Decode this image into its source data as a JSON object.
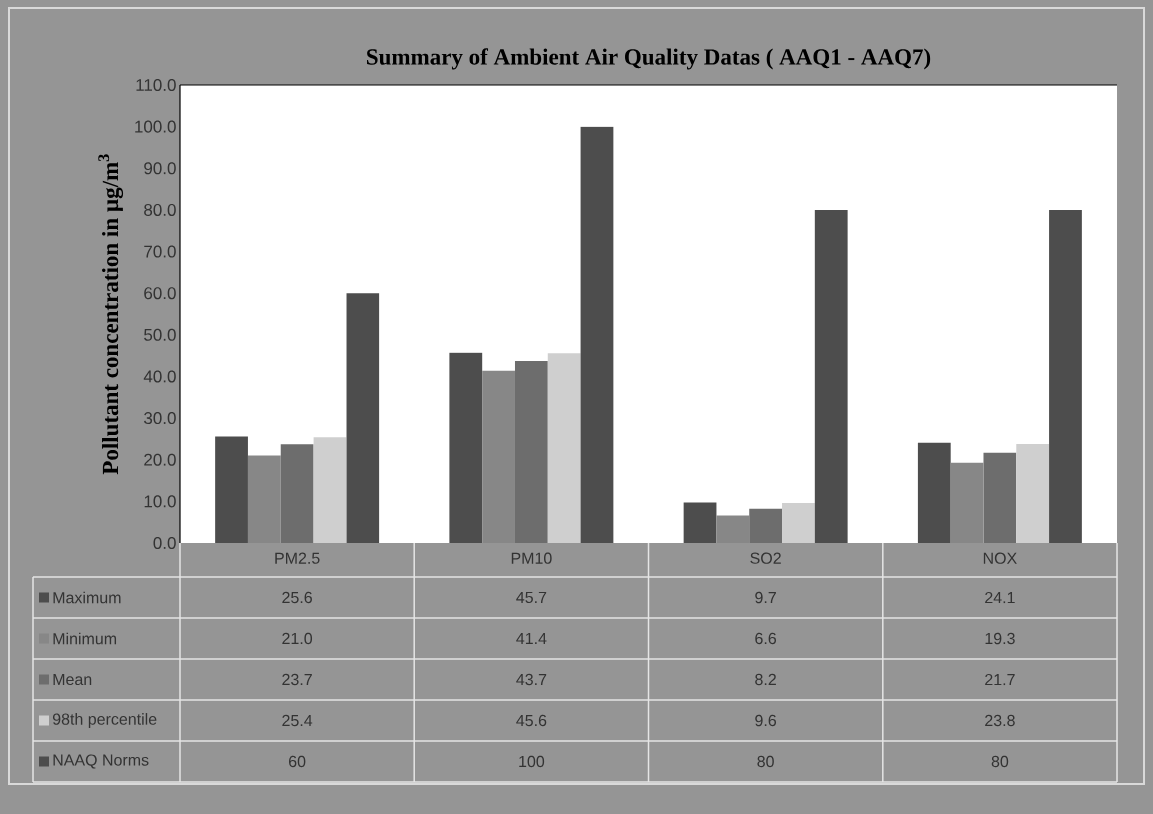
{
  "chart_data": {
    "type": "bar",
    "title": "Summary of Ambient Air Quality Datas ( AAQ1 - AAQ7)",
    "ylabel": "Pollutant  concentration  in  µg/m$^{3}$",
    "categories": [
      "PM2.5",
      "PM10",
      "SO2",
      "NOX"
    ],
    "series": [
      {
        "name": "Maximum",
        "color": "#4d4d4d",
        "values": [
          25.6,
          45.7,
          9.7,
          24.1
        ],
        "value_labels": [
          "25.6",
          "45.7",
          "9.7",
          "24.1"
        ]
      },
      {
        "name": "Minimum",
        "color": "#878787",
        "values": [
          21.0,
          41.4,
          6.6,
          19.3
        ],
        "value_labels": [
          "21.0",
          "41.4",
          "6.6",
          "19.3"
        ]
      },
      {
        "name": "Mean",
        "color": "#6d6d6d",
        "values": [
          23.7,
          43.7,
          8.2,
          21.7
        ],
        "value_labels": [
          "23.7",
          "43.7",
          "8.2",
          "21.7"
        ]
      },
      {
        "name": "98th percentile",
        "color": "#cfcfcf",
        "values": [
          25.4,
          45.6,
          9.6,
          23.8
        ],
        "value_labels": [
          "25.4",
          "45.6",
          "9.6",
          "23.8"
        ]
      },
      {
        "name": "NAAQ Norms",
        "color": "#4d4d4d",
        "values": [
          60,
          100,
          80,
          80
        ],
        "value_labels": [
          "60",
          "100",
          "80",
          "80"
        ]
      }
    ],
    "ylim": [
      0,
      110
    ],
    "yticks": [
      {
        "value": 0,
        "label": "0.0"
      },
      {
        "value": 10,
        "label": "10.0"
      },
      {
        "value": 20,
        "label": "20.0"
      },
      {
        "value": 30,
        "label": "30.0"
      },
      {
        "value": 40,
        "label": "40.0"
      },
      {
        "value": 50,
        "label": "50.0"
      },
      {
        "value": 60,
        "label": "60.0"
      },
      {
        "value": 70,
        "label": "70.0"
      },
      {
        "value": 80,
        "label": "80.0"
      },
      {
        "value": 90,
        "label": "90.0"
      },
      {
        "value": 100,
        "label": "100.0"
      },
      {
        "value": 110,
        "label": "110.0"
      }
    ],
    "grid": false,
    "legend": "bottom"
  }
}
